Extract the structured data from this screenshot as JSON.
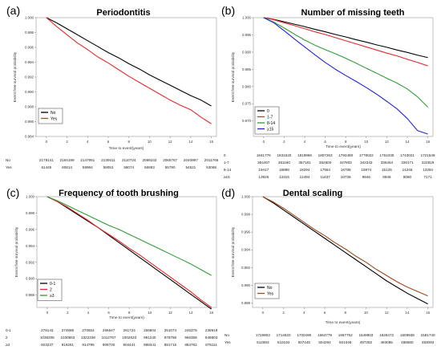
{
  "chart_data": [
    {
      "type": "line",
      "panel_label": "(a)",
      "title": "Periodontitis",
      "xlabel": "Time to event(years)",
      "ylabel": "Event free survival probability",
      "xlim": [
        -1,
        16.5
      ],
      "ylim": [
        0.984,
        1.0
      ],
      "xticks": [
        0,
        2,
        4,
        6,
        8,
        10,
        12,
        14,
        16
      ],
      "yticks": [
        0.984,
        0.986,
        0.988,
        0.99,
        0.992,
        0.994,
        0.996,
        0.998,
        1.0
      ],
      "ytick_labels": [
        "0.984",
        "0.986",
        "0.988",
        "0.990",
        "0.992",
        "0.994",
        "0.996",
        "0.998",
        "1.000"
      ],
      "legend_position": "bottom-left",
      "series": [
        {
          "name": "No",
          "color": "#000000",
          "x": [
            0,
            1,
            2,
            3,
            4,
            5,
            6,
            7,
            8,
            9,
            10,
            11,
            12,
            13,
            14,
            15,
            16
          ],
          "y": [
            1.0,
            0.9993,
            0.9985,
            0.9977,
            0.9969,
            0.9961,
            0.9953,
            0.9946,
            0.9938,
            0.9931,
            0.9923,
            0.9916,
            0.9909,
            0.9902,
            0.9895,
            0.9889,
            0.9881
          ]
        },
        {
          "name": "Yes",
          "color": "#e8282b",
          "x": [
            0,
            1,
            2,
            3,
            4,
            5,
            6,
            7,
            8,
            9,
            10,
            11,
            12,
            13,
            14,
            15,
            16
          ],
          "y": [
            1.0,
            0.9988,
            0.9977,
            0.9966,
            0.9957,
            0.9947,
            0.9939,
            0.993,
            0.9921,
            0.9913,
            0.9905,
            0.9897,
            0.9889,
            0.9882,
            0.9876,
            0.9866,
            0.9857
          ]
        }
      ],
      "risk_table": {
        "times": [
          0,
          2,
          4,
          6,
          8,
          10,
          12,
          14,
          16
        ],
        "rows": [
          {
            "label": "No",
            "values": [
              "2178141",
              "2164199",
              "2147951",
              "2130011",
              "2110724",
              "2089232",
              "2065767",
              "2040997",
              "2011765"
            ]
          },
          {
            "label": "Yes",
            "values": [
              "61445",
              "60814",
              "59984",
              "59053",
              "58074",
              "56953",
              "55790",
              "54521",
              "53068"
            ]
          }
        ]
      }
    },
    {
      "type": "line",
      "panel_label": "(b)",
      "title": "Number of missing teeth",
      "xlabel": "Time to event(years)",
      "ylabel": "Event free survival probability",
      "xlim": [
        -1,
        16.5
      ],
      "ylim": [
        0.9655,
        1.0
      ],
      "xticks": [
        0,
        2,
        4,
        6,
        8,
        10,
        12,
        14,
        16
      ],
      "yticks": [
        0.97,
        0.975,
        0.98,
        0.985,
        0.99,
        0.995,
        1.0
      ],
      "ytick_labels": [
        "0.970",
        "0.975",
        "0.980",
        "0.985",
        "0.990",
        "0.995",
        "1.000"
      ],
      "legend_position": "bottom-left",
      "series": [
        {
          "name": "0",
          "color": "#000000",
          "x": [
            0,
            1,
            2,
            3,
            4,
            5,
            6,
            7,
            8,
            9,
            10,
            11,
            12,
            13,
            14,
            15,
            16
          ],
          "y": [
            1.0,
            0.9995,
            0.9988,
            0.9981,
            0.9974,
            0.9966,
            0.9959,
            0.9951,
            0.9944,
            0.9936,
            0.9929,
            0.9921,
            0.9914,
            0.9906,
            0.9899,
            0.9891,
            0.9884
          ]
        },
        {
          "name": "1-7",
          "color": "#e8282b",
          "x": [
            0,
            1,
            2,
            3,
            4,
            5,
            6,
            7,
            8,
            9,
            10,
            11,
            12,
            13,
            14,
            15,
            16
          ],
          "y": [
            1.0,
            0.9994,
            0.9985,
            0.9977,
            0.9968,
            0.9959,
            0.9951,
            0.9942,
            0.9933,
            0.9924,
            0.9915,
            0.9906,
            0.9897,
            0.9889,
            0.9879,
            0.987,
            0.986
          ]
        },
        {
          "name": "8-14",
          "color": "#2e9e35",
          "x": [
            0,
            1,
            2,
            3,
            4,
            5,
            6,
            7,
            8,
            9,
            10,
            11,
            12,
            13,
            14,
            15,
            16
          ],
          "y": [
            1.0,
            0.9987,
            0.997,
            0.9952,
            0.9935,
            0.992,
            0.9907,
            0.9895,
            0.9882,
            0.9868,
            0.9853,
            0.9839,
            0.9824,
            0.981,
            0.9793,
            0.977,
            0.974
          ]
        },
        {
          "name": "≥15",
          "color": "#2323d6",
          "x": [
            0,
            1,
            2,
            3,
            4,
            5,
            6,
            7,
            8,
            9,
            10,
            11,
            12,
            13,
            14,
            15,
            16
          ],
          "y": [
            1.0,
            0.9985,
            0.9962,
            0.9938,
            0.9915,
            0.9892,
            0.987,
            0.985,
            0.9832,
            0.9815,
            0.9797,
            0.9778,
            0.9757,
            0.9735,
            0.9707,
            0.9672,
            0.9662
          ]
        }
      ],
      "risk_table": {
        "times": [
          0,
          2,
          4,
          6,
          8,
          10,
          12,
          14,
          16
        ],
        "rows": [
          {
            "label": "0",
            "values": [
              "1841776",
              "1831620",
              "1819966",
              "1807263",
              "1793480",
              "1778022",
              "1761030",
              "1743021",
              "1721549"
            ]
          },
          {
            "label": "1-7",
            "values": [
              "364467",
              "361180",
              "357181",
              "352600",
              "347802",
              "342343",
              "336454",
              "330171",
              "322819"
            ]
          },
          {
            "label": "8-14",
            "values": [
              "19417",
              "18898",
              "18294",
              "17564",
              "16788",
              "15974",
              "15125",
              "14246",
              "13294"
            ]
          },
          {
            "label": "≥15",
            "values": [
              "13926",
              "13315",
              "12494",
              "11637",
              "10728",
              "9846",
              "8948",
              "8080",
              "7171"
            ]
          }
        ]
      }
    },
    {
      "type": "line",
      "panel_label": "(c)",
      "title": "Frequency of tooth brushing",
      "xlabel": "Time to event(years)",
      "ylabel": "Event free survival probability",
      "xlim": [
        -1,
        16.5
      ],
      "ylim": [
        0.9865,
        1.0
      ],
      "xticks": [
        0,
        2,
        4,
        6,
        8,
        10,
        12,
        14,
        16
      ],
      "yticks": [
        0.988,
        0.99,
        0.992,
        0.994,
        0.996,
        0.998,
        1.0
      ],
      "ytick_labels": [
        "0.988",
        "0.990",
        "0.992",
        "0.994",
        "0.996",
        "0.998",
        "1.000"
      ],
      "legend_position": "bottom-left",
      "series": [
        {
          "name": "0-1",
          "color": "#000000",
          "x": [
            0,
            1,
            2,
            3,
            4,
            5,
            6,
            7,
            8,
            9,
            10,
            11,
            12,
            13,
            14,
            15,
            16
          ],
          "y": [
            1.0,
            0.9994,
            0.9986,
            0.9978,
            0.997,
            0.9962,
            0.9953,
            0.9944,
            0.9935,
            0.9926,
            0.9917,
            0.9908,
            0.9899,
            0.989,
            0.9881,
            0.9872,
            0.9863
          ]
        },
        {
          "name": "2",
          "color": "#e8282b",
          "x": [
            0,
            1,
            2,
            3,
            4,
            5,
            6,
            7,
            8,
            9,
            10,
            11,
            12,
            13,
            14,
            15,
            16
          ],
          "y": [
            1.0,
            0.9994,
            0.9987,
            0.9979,
            0.9971,
            0.9962,
            0.9954,
            0.9946,
            0.9937,
            0.9929,
            0.992,
            0.9911,
            0.9902,
            0.9893,
            0.9884,
            0.9874,
            0.9865
          ]
        },
        {
          "name": "≥3",
          "color": "#2e9e35",
          "x": [
            0,
            1,
            2,
            3,
            4,
            5,
            6,
            7,
            8,
            9,
            10,
            11,
            12,
            13,
            14,
            15,
            16
          ],
          "y": [
            1.0,
            0.9995,
            0.9989,
            0.9983,
            0.9977,
            0.9971,
            0.9965,
            0.996,
            0.9954,
            0.9948,
            0.9942,
            0.9936,
            0.993,
            0.9924,
            0.9918,
            0.9911,
            0.9904
          ]
        }
      ],
      "risk_table": {
        "times": [
          0,
          2,
          4,
          6,
          8,
          10,
          12,
          14,
          16
        ],
        "rows": [
          {
            "label": "0-1",
            "values": [
              "278143",
              "274889",
              "270604",
              "266547",
              "261724",
              "256604",
              "251074",
              "245378",
              "238919"
            ]
          },
          {
            "label": "2",
            "values": [
              "1038206",
              "1030863",
              "1022336",
              "1012767",
              "1002633",
              "991240",
              "978768",
              "965358",
              "949803"
            ]
          },
          {
            "label": "≥3",
            "values": [
              "923237",
              "919261",
              "914795",
              "909730",
              "904441",
              "898341",
              "891715",
              "884782",
              "876111"
            ]
          }
        ]
      }
    },
    {
      "type": "line",
      "panel_label": "(d)",
      "title": "Dental scaling",
      "xlabel": "Time to event(years)",
      "ylabel": "Event free survival probability",
      "xlim": [
        -1,
        16.5
      ],
      "ylim": [
        0.9875,
        1.0
      ],
      "xticks": [
        0,
        2,
        4,
        6,
        8,
        10,
        12,
        14,
        16
      ],
      "yticks": [
        0.988,
        0.99,
        0.992,
        0.994,
        0.996,
        0.998,
        1.0
      ],
      "ytick_labels": [
        "0.988",
        "0.990",
        "0.992",
        "0.994",
        "0.996",
        "0.998",
        "1.000"
      ],
      "legend_position": "bottom-left",
      "series": [
        {
          "name": "No",
          "color": "#000000",
          "x": [
            0,
            1,
            2,
            3,
            4,
            5,
            6,
            7,
            8,
            9,
            10,
            11,
            12,
            13,
            14,
            15,
            16
          ],
          "y": [
            1.0,
            0.9993,
            0.9985,
            0.9977,
            0.9969,
            0.9961,
            0.9953,
            0.9945,
            0.9937,
            0.9929,
            0.9921,
            0.9913,
            0.9905,
            0.9898,
            0.9891,
            0.9885,
            0.9879
          ]
        },
        {
          "name": "Yes",
          "color": "#9a4a1c",
          "x": [
            0,
            1,
            2,
            3,
            4,
            5,
            6,
            7,
            8,
            9,
            10,
            11,
            12,
            13,
            14,
            15,
            16
          ],
          "y": [
            1.0,
            0.9994,
            0.9987,
            0.9979,
            0.9971,
            0.9963,
            0.9956,
            0.9948,
            0.9941,
            0.9933,
            0.9926,
            0.9918,
            0.9911,
            0.9904,
            0.9898,
            0.9893,
            0.9888
          ]
        }
      ],
      "risk_table": {
        "times": [
          0,
          2,
          4,
          6,
          8,
          10,
          12,
          14,
          16
        ],
        "rows": [
          {
            "label": "No",
            "values": [
              "1726903",
              "1714620",
              "1700490",
              "1684779",
              "1667752",
              "1649903",
              "1628472",
              "1609938",
              "1581740"
            ]
          },
          {
            "label": "Yes",
            "values": [
              "512683",
              "510193",
              "507445",
              "504294",
              "501046",
              "497282",
              "493085",
              "488580",
              "483093"
            ]
          }
        ]
      }
    }
  ]
}
